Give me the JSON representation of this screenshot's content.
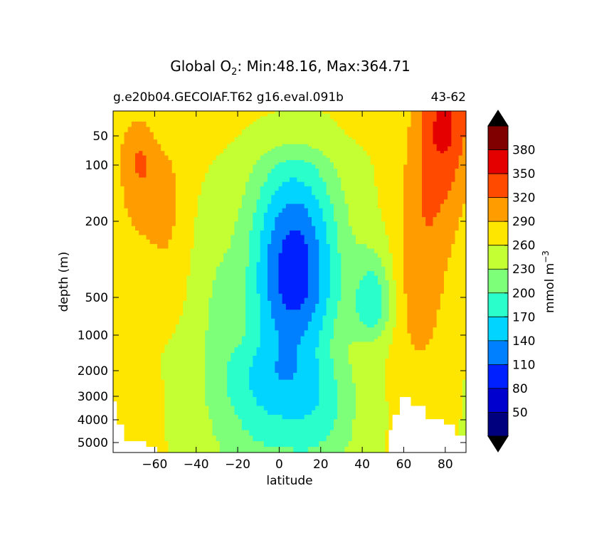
{
  "chart_data": {
    "type": "heatmap",
    "title": "Global O",
    "title_sub": "2",
    "title_rest": ": Min:48.16, Max:364.71",
    "subtitle_left": "g.e20b04.GECOIAF.T62 g16.eval.091b",
    "subtitle_right": "43-62",
    "xlabel": "latitude",
    "ylabel": "depth (m)",
    "xlim": [
      -80,
      90
    ],
    "x_ticks": [
      -60,
      -40,
      -20,
      0,
      20,
      40,
      60,
      80
    ],
    "x_tick_labels": [
      "−60",
      "−40",
      "−20",
      "0",
      "20",
      "40",
      "60",
      "80"
    ],
    "y_ticks": [
      50,
      100,
      200,
      500,
      1000,
      2000,
      3000,
      4000,
      5000
    ],
    "y_tick_labels": [
      "50",
      "100",
      "200",
      "500",
      "1000",
      "2000",
      "3000",
      "4000",
      "5000"
    ],
    "colorbar": {
      "label": "mmol m",
      "label_sup": "−3",
      "levels": [
        20,
        50,
        80,
        110,
        140,
        170,
        200,
        230,
        260,
        290,
        320,
        350,
        380,
        410
      ],
      "tick_labels": [
        "50",
        "80",
        "110",
        "140",
        "170",
        "200",
        "230",
        "260",
        "290",
        "320",
        "350",
        "380"
      ],
      "colors": [
        "#00007f",
        "#0000ce",
        "#0020ff",
        "#0080ff",
        "#00d4ff",
        "#2affcc",
        "#7dff7a",
        "#c4ff33",
        "#ffe600",
        "#ff9c00",
        "#ff4a00",
        "#e50000",
        "#800000"
      ],
      "extend_color": "#000000"
    },
    "land_color": "#ffffff"
  }
}
